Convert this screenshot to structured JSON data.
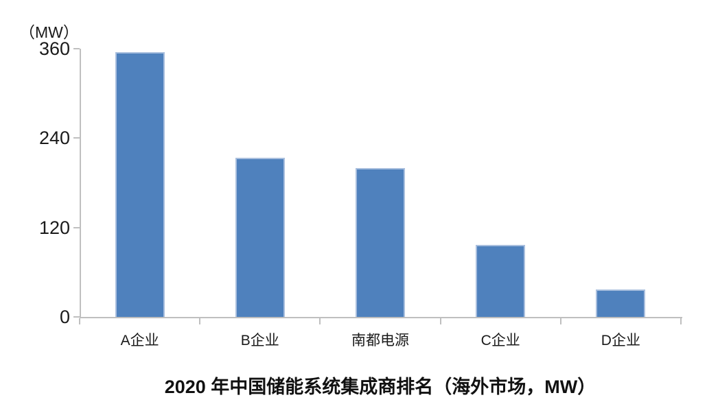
{
  "chart_data": {
    "type": "bar",
    "title": "2020 年中国储能系统集成商排名（海外市场，MW）",
    "unit_label": "（MW）",
    "categories": [
      "A企业",
      "B企业",
      "南都电源",
      "C企业",
      "D企业"
    ],
    "values": [
      355,
      214,
      200,
      97,
      37
    ],
    "xlabel": "",
    "ylabel": "（MW）",
    "ylim": [
      0,
      360
    ],
    "yticks": [
      0,
      120,
      240,
      360
    ],
    "grid": false,
    "legend": "none",
    "colors": {
      "bar_fill": "#4F81BD",
      "bar_edge": "#A9BFDE",
      "axis": "#BFBFBF",
      "tick_text": "#1A1A1A",
      "title_text": "#111111"
    }
  }
}
